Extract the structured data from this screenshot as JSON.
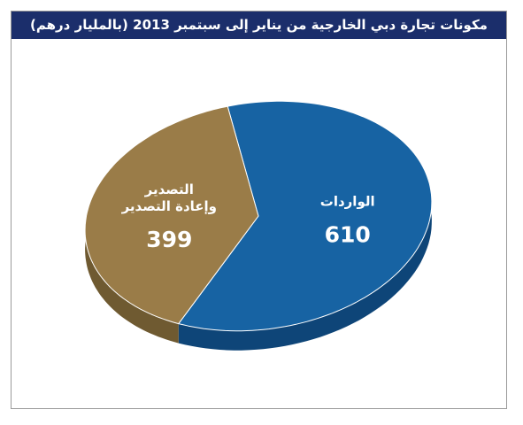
{
  "chart_data": {
    "type": "pie",
    "title": "مكونات تجارة دبي الخارجية من يناير إلى سبتمبر 2013 (بالمليار درهم)",
    "categories": [
      "الواردات",
      "التصدير وإعادة التصدير"
    ],
    "category_lines": [
      [
        "الواردات"
      ],
      [
        "التصدير",
        "وإعادة التصدير"
      ]
    ],
    "values": [
      610,
      399
    ],
    "value_labels": [
      "610",
      "399"
    ],
    "colors": [
      "#1763a3",
      "#9a7c48"
    ],
    "side_colors": [
      "#0e4578",
      "#6f5a31"
    ],
    "legend": "none",
    "three_d": true
  }
}
